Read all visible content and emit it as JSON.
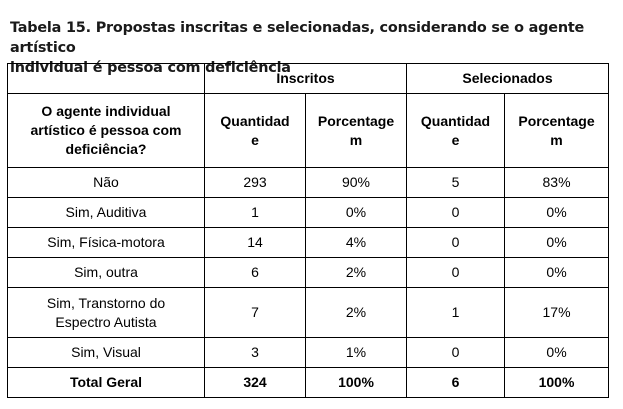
{
  "caption": {
    "line1": "Tabela 15. Propostas inscritas e selecionadas, considerando se o agente artístico",
    "line2": "individual é pessoa com deficiência"
  },
  "table": {
    "group_headers": {
      "inscritos": "Inscritos",
      "selecionados": "Selecionados"
    },
    "row_header": "O agente individual artístico é pessoa com deficiência?",
    "sub_headers": {
      "ins_qty": "Quantidad e",
      "ins_pct": "Porcentage m",
      "sel_qty": "Quantidad e",
      "sel_pct": "Porcentage m"
    },
    "rows": [
      {
        "label": "Não",
        "ins_qty": "293",
        "ins_pct": "90%",
        "sel_qty": "5",
        "sel_pct": "83%"
      },
      {
        "label": "Sim, Auditiva",
        "ins_qty": "1",
        "ins_pct": "0%",
        "sel_qty": "0",
        "sel_pct": "0%"
      },
      {
        "label": "Sim, Física-motora",
        "ins_qty": "14",
        "ins_pct": "4%",
        "sel_qty": "0",
        "sel_pct": "0%"
      },
      {
        "label": "Sim, outra",
        "ins_qty": "6",
        "ins_pct": "2%",
        "sel_qty": "0",
        "sel_pct": "0%"
      },
      {
        "label": "Sim, Transtorno do Espectro Autista",
        "ins_qty": "7",
        "ins_pct": "2%",
        "sel_qty": "1",
        "sel_pct": "17%"
      },
      {
        "label": "Sim, Visual",
        "ins_qty": "3",
        "ins_pct": "1%",
        "sel_qty": "0",
        "sel_pct": "0%"
      }
    ],
    "total": {
      "label": "Total Geral",
      "ins_qty": "324",
      "ins_pct": "100%",
      "sel_qty": "6",
      "sel_pct": "100%"
    }
  }
}
